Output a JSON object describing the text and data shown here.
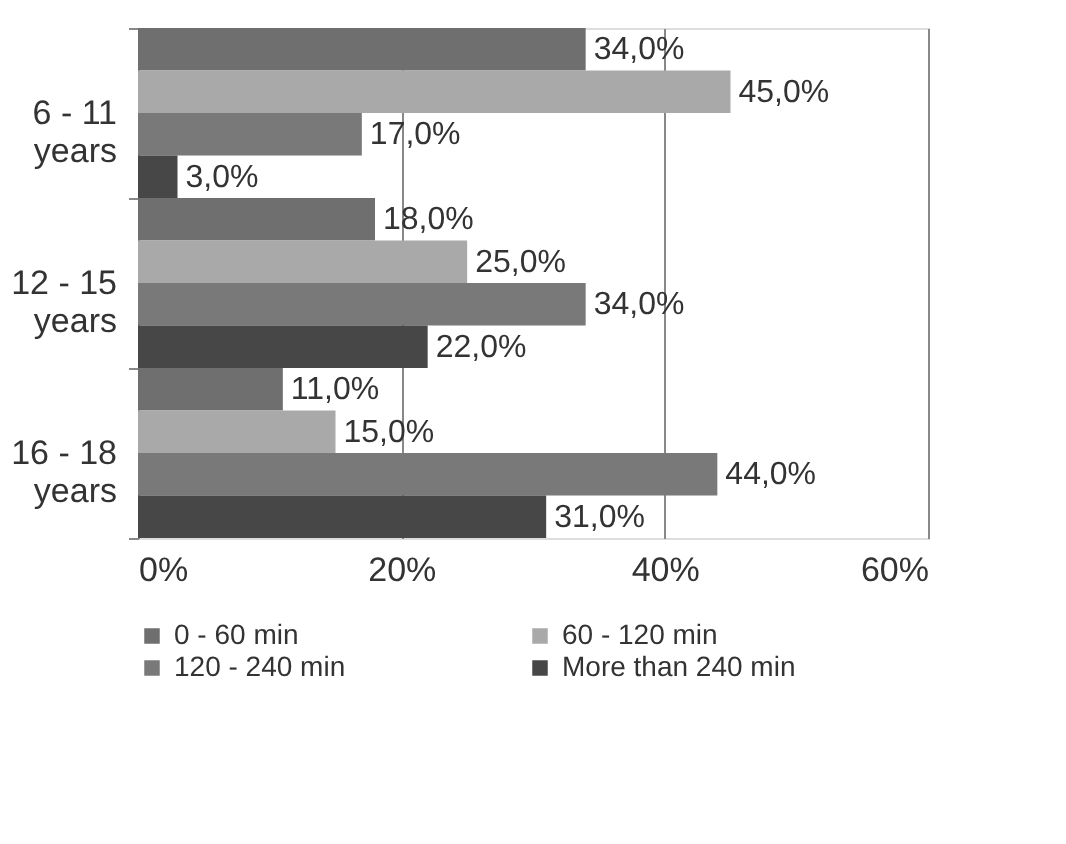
{
  "chart_data": {
    "type": "bar",
    "orientation": "horizontal",
    "categories": [
      "6 - 11 years",
      "12 - 15 years",
      "16 - 18 years"
    ],
    "series": [
      {
        "name": "0 - 60 min",
        "color": "#6f6f6f",
        "values": [
          34,
          18,
          11
        ],
        "value_labels": [
          "34,0%",
          "18,0%",
          "11,0%"
        ]
      },
      {
        "name": "60 - 120 min",
        "color": "#a9a9a9",
        "values": [
          45,
          25,
          15
        ],
        "value_labels": [
          "45,0%",
          "25,0%",
          "15,0%"
        ]
      },
      {
        "name": "120 - 240 min",
        "color": "#797979",
        "values": [
          17,
          34,
          44
        ],
        "value_labels": [
          "17,0%",
          "34,0%",
          "44,0%"
        ]
      },
      {
        "name": "More than 240 min",
        "color": "#474747",
        "values": [
          3,
          22,
          31
        ],
        "value_labels": [
          "3,0%",
          "22,0%",
          "31,0%"
        ]
      }
    ],
    "xlim": [
      0,
      60
    ],
    "xticks": [
      {
        "value": 0,
        "label": "0%"
      },
      {
        "value": 20,
        "label": "20%"
      },
      {
        "value": 40,
        "label": "40%"
      },
      {
        "value": 60,
        "label": "60%"
      }
    ],
    "grid": "x",
    "legend": "bottom"
  }
}
